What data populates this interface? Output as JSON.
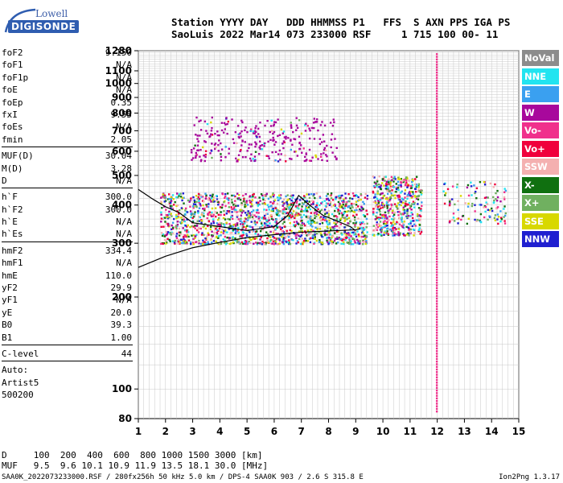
{
  "logo": {
    "line1": "Lowell",
    "line2": "DIGISONDE"
  },
  "header": {
    "line1": "Station YYYY DAY   DDD HHMMSS P1   FFS  S AXN PPS IGA PS",
    "line2": "SaoLuis 2022 Mar14 073 233000 RSF     1 715 100 00- 11"
  },
  "params": {
    "groups": [
      [
        [
          "foF2",
          "9.150"
        ],
        [
          "foF1",
          "N/A"
        ],
        [
          "foF1p",
          "N/A"
        ],
        [
          "foE",
          "N/A"
        ],
        [
          "foEp",
          "0.35"
        ],
        [
          "fxI",
          "9.55"
        ],
        [
          "foEs",
          "N/A"
        ],
        [
          "fmin",
          "2.05"
        ]
      ],
      [
        [
          "MUF(D)",
          "30.04"
        ],
        [
          "M(D)",
          "3.28"
        ],
        [
          "D",
          "N/A"
        ]
      ],
      [
        [
          "h`F",
          "300.0"
        ],
        [
          "h`F2",
          "300.0"
        ],
        [
          "h`E",
          "N/A"
        ],
        [
          "h`Es",
          "N/A"
        ]
      ],
      [
        [
          "hmF2",
          "334.4"
        ],
        [
          "hmF1",
          "N/A"
        ],
        [
          "hmE",
          "110.0"
        ],
        [
          "yF2",
          "29.9"
        ],
        [
          "yF1",
          "N/A"
        ],
        [
          "yE",
          "20.0"
        ],
        [
          "B0",
          "39.3"
        ],
        [
          "B1",
          "1.00"
        ]
      ],
      [
        [
          "C-level",
          "44"
        ]
      ]
    ],
    "auto": [
      "Auto:",
      "Artist5",
      "500200"
    ]
  },
  "bottom": {
    "d_line": "D     100  200  400  600  800 1000 1500 3000 [km]",
    "muf_line": "MUF   9.5  9.6 10.1 10.9 11.9 13.5 18.1 30.0 [MHz]"
  },
  "footer": {
    "left": "SAA0K_2022073233000.RSF / 280fx256h 50 kHz 5.0 km / DPS-4 SAA0K 903 / 2.6 S 315.8 E",
    "right": "Ion2Png 1.3.17"
  },
  "legend": [
    {
      "label": "NoVal",
      "color": "#8c8c8c"
    },
    {
      "label": "NNE",
      "color": "#22e4f0"
    },
    {
      "label": "E",
      "color": "#3aa0f0"
    },
    {
      "label": "W",
      "color": "#a8089c"
    },
    {
      "label": "Vo-",
      "color": "#f0308c"
    },
    {
      "label": "Vo+",
      "color": "#f0003c"
    },
    {
      "label": "SSW",
      "color": "#f4b0b0"
    },
    {
      "label": "X-",
      "color": "#107010"
    },
    {
      "label": "X+",
      "color": "#70b060"
    },
    {
      "label": "SSE",
      "color": "#d8d800"
    },
    {
      "label": "NNW",
      "color": "#2020d0"
    }
  ],
  "chart_data": {
    "type": "scatter",
    "title": "",
    "xlabel": "",
    "ylabel": "",
    "xlim": [
      1,
      15
    ],
    "ylim": [
      80,
      1280
    ],
    "y_scale": "log",
    "grid": true,
    "x_ticks": [
      1,
      2,
      3,
      4,
      5,
      6,
      7,
      8,
      9,
      10,
      11,
      12,
      13,
      14,
      15
    ],
    "y_ticks": [
      80,
      100,
      200,
      300,
      400,
      500,
      600,
      700,
      800,
      900,
      1000,
      1100,
      1280
    ],
    "x_tick_labels": [
      "1",
      "2",
      "3",
      "4",
      "5",
      "6",
      "7",
      "8",
      "9",
      "10",
      "11",
      "12",
      "13",
      "14",
      "15"
    ],
    "y_tick_labels": [
      "80",
      "100",
      "200",
      "300",
      "400",
      "500",
      "600",
      "700",
      "800",
      "900",
      "1000",
      "1100",
      "1280"
    ],
    "legend_placement": "right",
    "foF2_marker_x": 9.15,
    "fxI_marker_x": 9.55,
    "vertical_line_x": 11.95,
    "profile_line": {
      "x": [
        1.0,
        2.0,
        3.0,
        4.0,
        5.0,
        6.0,
        7.0,
        8.0,
        9.0,
        9.15
      ],
      "y": [
        250,
        272,
        290,
        302,
        313,
        320,
        326,
        329,
        332,
        334
      ]
    },
    "trace_line": {
      "x": [
        1.0,
        1.5,
        2.0,
        2.5,
        3.0,
        4.0,
        5.0,
        6.0,
        6.5,
        6.9,
        7.3,
        7.8,
        8.3,
        8.8,
        9.0
      ],
      "y": [
        450,
        420,
        395,
        378,
        350,
        340,
        330,
        340,
        370,
        430,
        400,
        370,
        355,
        340,
        330
      ]
    },
    "clusters": [
      {
        "name": "ordinary trace",
        "x_range": [
          1.8,
          9.4
        ],
        "y_range": [
          300,
          440
        ]
      },
      {
        "name": "extraordinary trace",
        "x_range": [
          9.6,
          11.4
        ],
        "y_range": [
          320,
          500
        ]
      },
      {
        "name": "high F2 echoes",
        "x_range": [
          2.9,
          8.3
        ],
        "y_range": [
          560,
          780
        ]
      },
      {
        "name": "far trace",
        "x_range": [
          12.2,
          14.5
        ],
        "y_range": [
          350,
          480
        ]
      }
    ]
  }
}
